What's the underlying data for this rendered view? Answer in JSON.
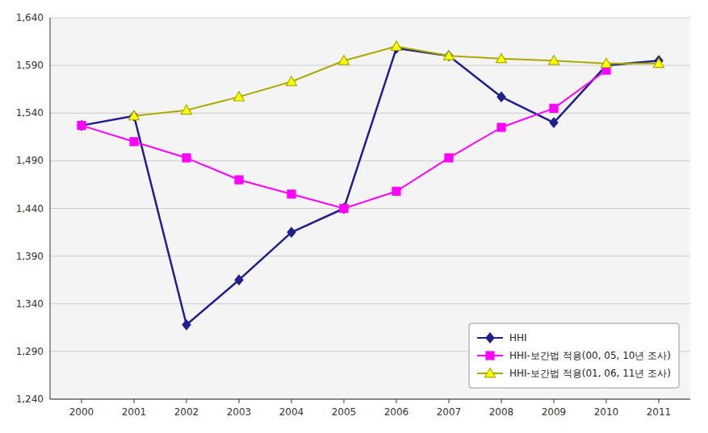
{
  "chart_data": {
    "type": "line",
    "x": [
      2000,
      2001,
      2002,
      2003,
      2004,
      2005,
      2006,
      2007,
      2008,
      2009,
      2010,
      2011
    ],
    "series": [
      {
        "name": "HHI",
        "color": "#1F1F8F",
        "marker": "diamond",
        "values": [
          1527,
          1537,
          1318,
          1365,
          1415,
          1440,
          1608,
          1600,
          1557,
          1530,
          1590,
          1595
        ]
      },
      {
        "name": "HHI-보간법 적용(00, 05, 10년 조사)",
        "color": "#FF00FF",
        "marker": "square",
        "values": [
          1527,
          1510,
          1493,
          1470,
          1455,
          1440,
          1458,
          1493,
          1525,
          1545,
          1585,
          null
        ]
      },
      {
        "name": "HHI-보간법 적용(01, 06, 11년 조사)",
        "color": "#AAAA00",
        "marker": "triangle",
        "values": [
          null,
          1537,
          1543,
          1557,
          1573,
          1595,
          1610,
          1600,
          1597,
          1595,
          1592,
          1592
        ]
      }
    ],
    "xlim": [
      1999.4,
      2011.6
    ],
    "xticks": [
      2000,
      2001,
      2002,
      2003,
      2004,
      2005,
      2006,
      2007,
      2008,
      2009,
      2010,
      2011
    ],
    "ylim": [
      1240,
      1640
    ],
    "yticks": [
      {
        "value": 1240,
        "label": "1,240"
      },
      {
        "value": 1290,
        "label": "1,290"
      },
      {
        "value": 1340,
        "label": "1,340"
      },
      {
        "value": 1390,
        "label": "1,390"
      },
      {
        "value": 1440,
        "label": "1,440"
      },
      {
        "value": 1490,
        "label": "1,490"
      },
      {
        "value": 1540,
        "label": "1,540"
      },
      {
        "value": 1590,
        "label": "1,590"
      },
      {
        "value": 1640,
        "label": "1,640"
      }
    ],
    "grid": true,
    "legend": "lower right"
  }
}
